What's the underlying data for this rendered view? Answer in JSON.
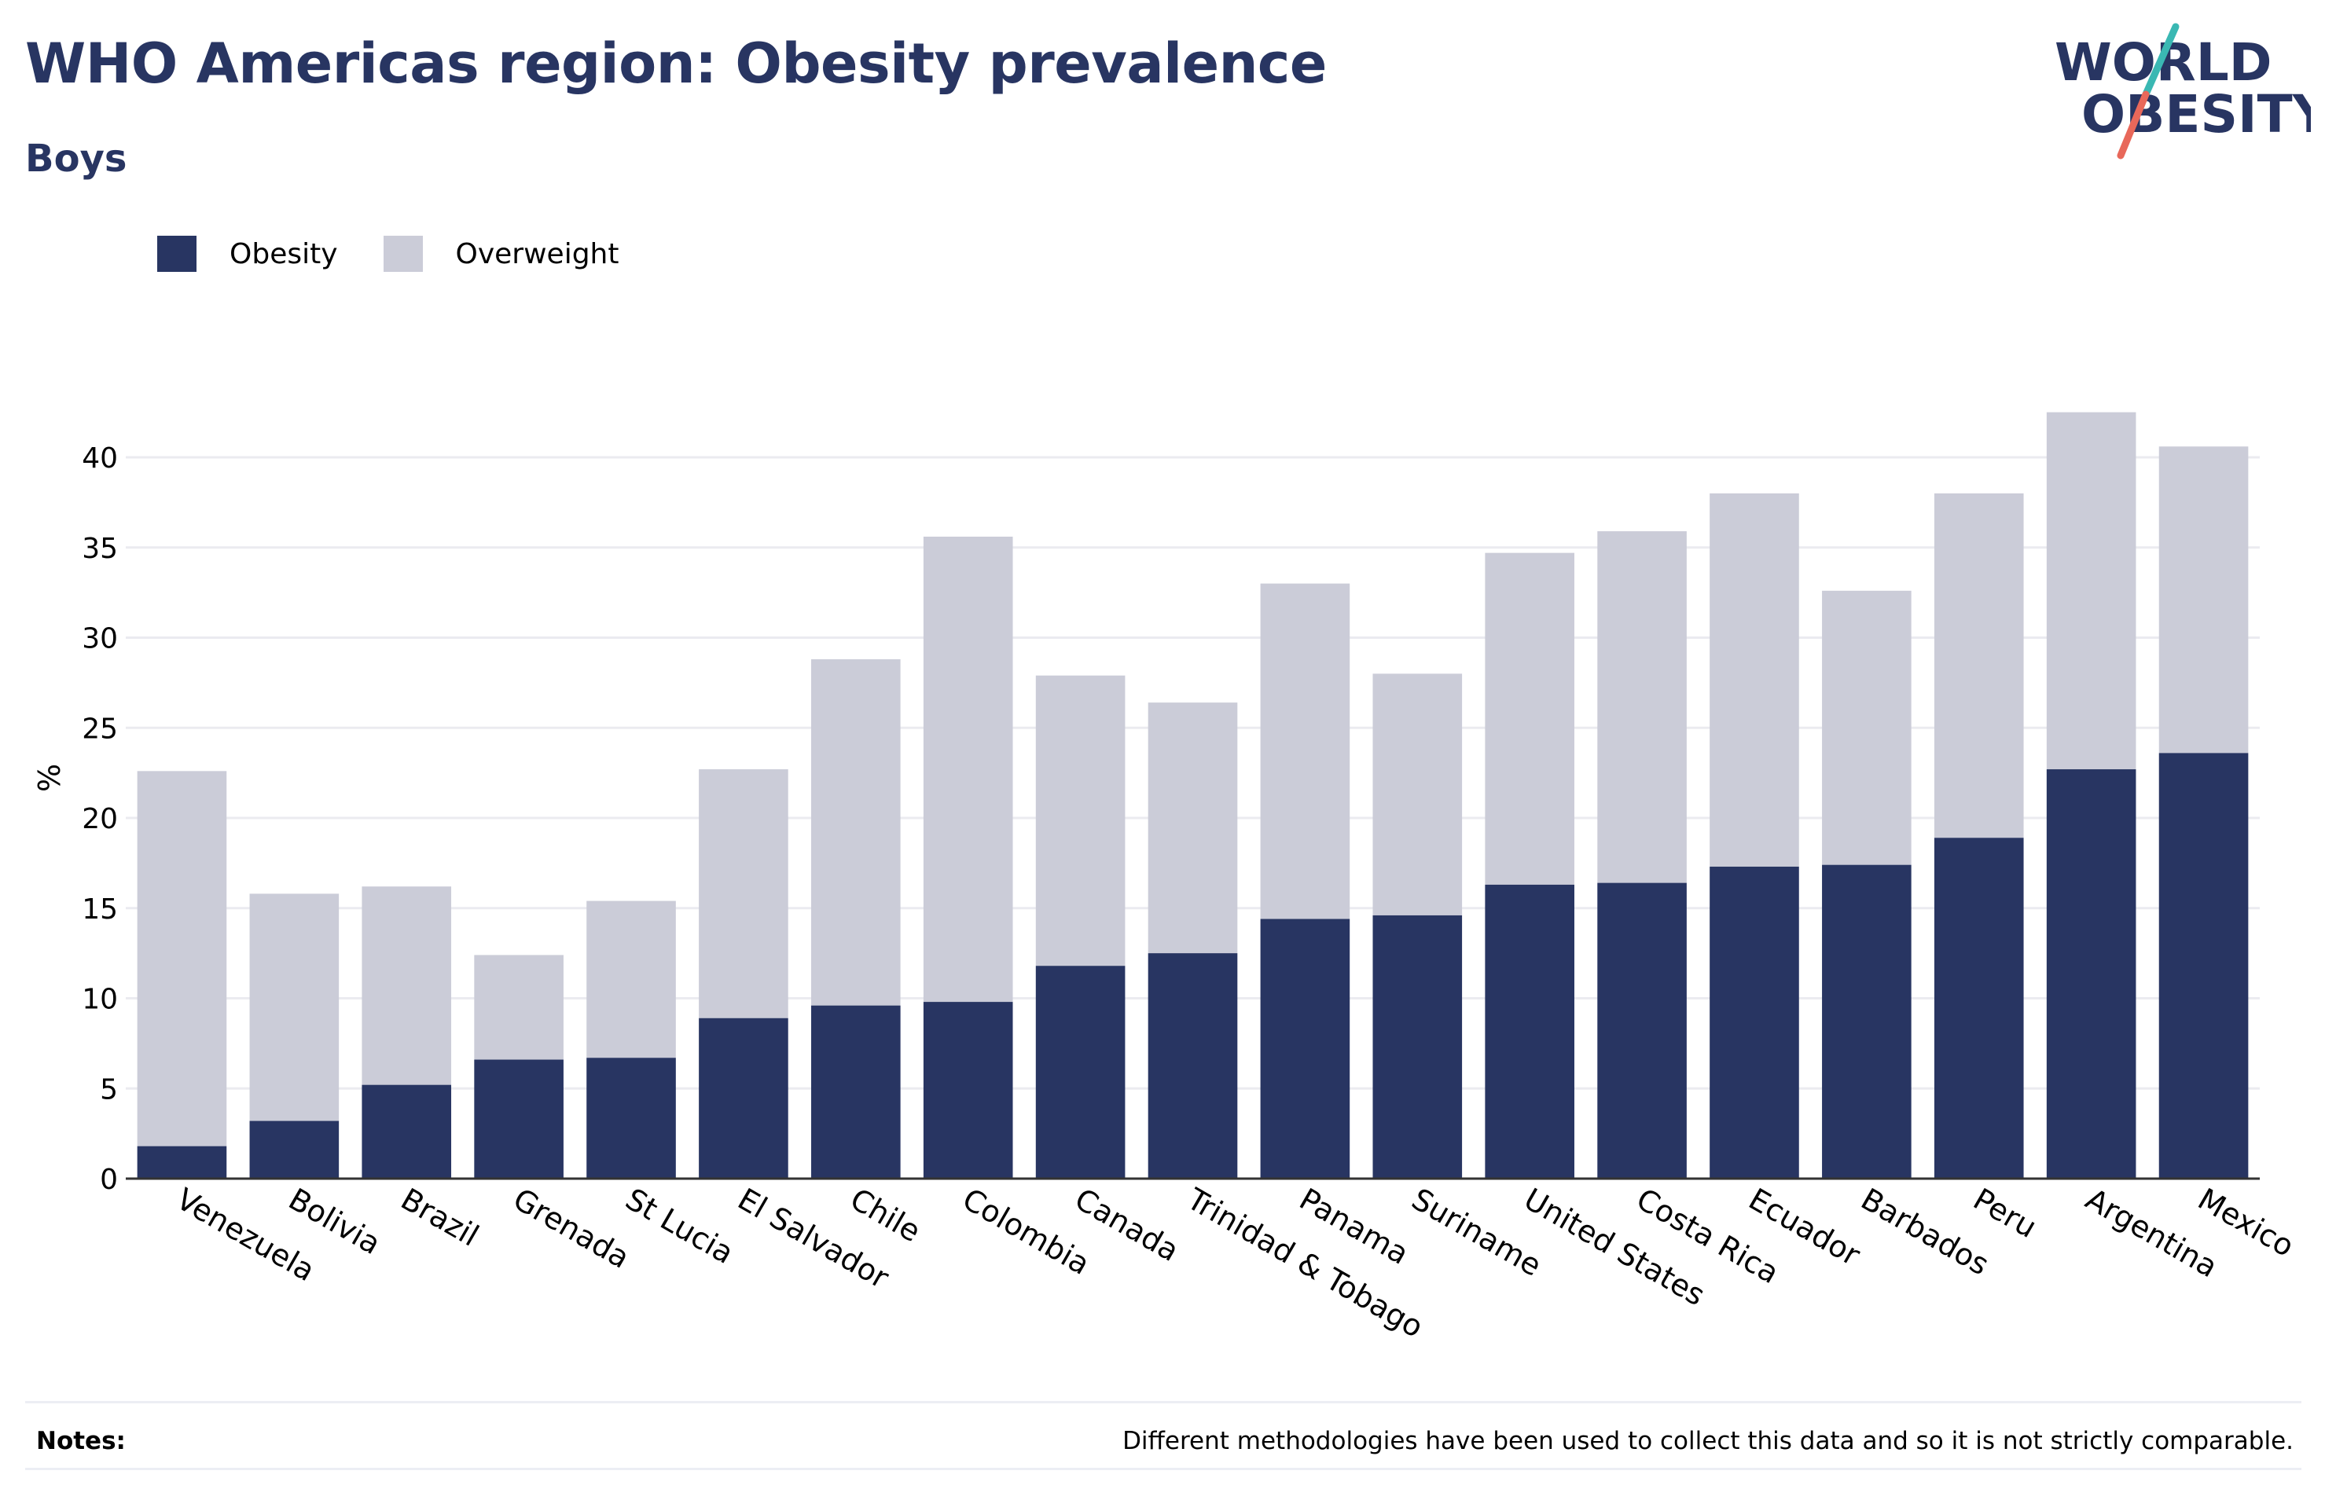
{
  "header": {
    "title": "WHO Americas region: Obesity prevalence",
    "subtitle": "Boys"
  },
  "logo": {
    "line1": "WORLD",
    "line2": "OBESITY",
    "colors": {
      "text": "#283562",
      "slash_top": "#3ab8b3",
      "slash_bottom": "#e8685a"
    }
  },
  "notes": {
    "label": "Notes:",
    "text": "Different methodologies have been used to collect this data and so it is not strictly comparable."
  },
  "colors": {
    "obesity": "#283562",
    "overweight": "#cbccd8",
    "grid": "#ebebf0",
    "axis": "#333333"
  },
  "chart_data": {
    "type": "bar",
    "stacked": true,
    "title": "WHO Americas region: Obesity prevalence",
    "subtitle": "Boys",
    "xlabel": "",
    "ylabel": "%",
    "ylim": [
      0,
      45
    ],
    "yticks": [
      0,
      5,
      10,
      15,
      20,
      25,
      30,
      35,
      40
    ],
    "grid": true,
    "legend_position": "top-left",
    "categories": [
      "Venezuela",
      "Bolivia",
      "Brazil",
      "Grenada",
      "St Lucia",
      "El Salvador",
      "Chile",
      "Colombia",
      "Canada",
      "Trinidad & Tobago",
      "Panama",
      "Suriname",
      "United States",
      "Costa Rica",
      "Ecuador",
      "Barbados",
      "Peru",
      "Argentina",
      "Mexico"
    ],
    "series": [
      {
        "name": "Obesity",
        "color": "#283562",
        "values": [
          1.8,
          3.2,
          5.2,
          6.6,
          6.7,
          8.9,
          9.6,
          9.8,
          11.8,
          12.5,
          14.4,
          14.6,
          16.3,
          16.4,
          17.3,
          17.4,
          18.9,
          22.7,
          23.6
        ]
      },
      {
        "name": "Overweight",
        "color": "#cbccd8",
        "values": [
          20.8,
          12.6,
          11.0,
          5.8,
          8.7,
          13.8,
          19.2,
          25.8,
          16.1,
          13.9,
          18.6,
          13.4,
          18.4,
          19.5,
          20.7,
          15.2,
          19.1,
          19.8,
          17.0
        ]
      }
    ]
  }
}
